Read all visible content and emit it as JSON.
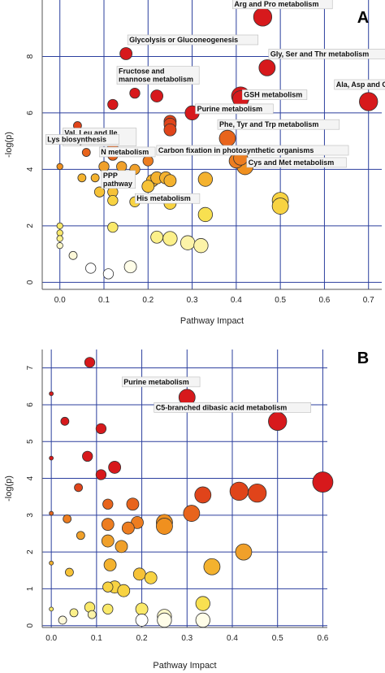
{
  "chart_data": [
    {
      "type": "scatter",
      "panel_label": "A",
      "xlabel": "Pathway Impact",
      "ylabel": "-log(p)",
      "xlim": [
        -0.04,
        0.73
      ],
      "ylim": [
        -0.25,
        10.0
      ],
      "xticks": [
        0.0,
        0.1,
        0.2,
        0.3,
        0.4,
        0.5,
        0.6,
        0.7
      ],
      "yticks": [
        0,
        2,
        4,
        6,
        8
      ],
      "grid": true,
      "points": [
        {
          "x": 0.46,
          "y": 9.4,
          "color": "#d7191c",
          "size": 9,
          "label": "Arg and Pro metabolism"
        },
        {
          "x": 0.15,
          "y": 8.1,
          "color": "#d7191c",
          "size": 6,
          "label": "Glycolysis or Gluconeogenesis"
        },
        {
          "x": 0.47,
          "y": 7.6,
          "color": "#d7191c",
          "size": 8,
          "label": "Gly, Ser and Thr metabolism"
        },
        {
          "x": 0.22,
          "y": 6.6,
          "color": "#d7191c",
          "size": 6
        },
        {
          "x": 0.17,
          "y": 6.7,
          "color": "#d7191c",
          "size": 5,
          "label": "Fructose and mannose metabolism"
        },
        {
          "x": 0.12,
          "y": 6.3,
          "color": "#d7191c",
          "size": 5
        },
        {
          "x": 0.7,
          "y": 6.4,
          "color": "#d7191c",
          "size": 9,
          "label": "Ala, Asp and Glu metabolism"
        },
        {
          "x": 0.41,
          "y": 6.6,
          "color": "#d7191c",
          "size": 9
        },
        {
          "x": 0.41,
          "y": 6.5,
          "color": "#d7191c",
          "size": 8,
          "label": "GSH metabolism"
        },
        {
          "x": 0.3,
          "y": 6.0,
          "color": "#d7191c",
          "size": 7,
          "label": "Purine metabolism"
        },
        {
          "x": 0.25,
          "y": 5.7,
          "color": "#e0441a",
          "size": 6
        },
        {
          "x": 0.25,
          "y": 5.6,
          "color": "#e0441a",
          "size": 6
        },
        {
          "x": 0.25,
          "y": 5.4,
          "color": "#e0441a",
          "size": 6
        },
        {
          "x": 0.04,
          "y": 5.55,
          "color": "#e0441a",
          "size": 4,
          "label": "Val, Leu and Ile biosynthesis"
        },
        {
          "x": 0.05,
          "y": 5.3,
          "color": "#e0441a",
          "size": 4
        },
        {
          "x": 0.38,
          "y": 5.1,
          "color": "#e8641c",
          "size": 8,
          "label": "Phe, Tyr and Trp metabolism"
        },
        {
          "x": 0.12,
          "y": 4.8,
          "color": "#e8641c",
          "size": 5
        },
        {
          "x": 0.06,
          "y": 4.6,
          "color": "#e8641c",
          "size": 4,
          "label": "Lys biosynthesis"
        },
        {
          "x": 0.12,
          "y": 4.5,
          "color": "#e8641c",
          "size": 5
        },
        {
          "x": 0.4,
          "y": 4.3,
          "color": "#ed7d20",
          "size": 7,
          "label": "Carbon fixation in photosynthetic organisms"
        },
        {
          "x": 0.41,
          "y": 4.4,
          "color": "#ed7d20",
          "size": 7
        },
        {
          "x": 0.2,
          "y": 4.3,
          "color": "#ed7d20",
          "size": 5,
          "label": "N metabolism"
        },
        {
          "x": 0.42,
          "y": 4.1,
          "color": "#f0901f",
          "size": 8,
          "label": "Cys and Met metabolism"
        },
        {
          "x": 0.0,
          "y": 4.1,
          "color": "#f0901f",
          "size": 3
        },
        {
          "x": 0.1,
          "y": 4.1,
          "color": "#f0a02a",
          "size": 5
        },
        {
          "x": 0.14,
          "y": 4.1,
          "color": "#f0a02a",
          "size": 5
        },
        {
          "x": 0.17,
          "y": 4.0,
          "color": "#f0a02a",
          "size": 5
        },
        {
          "x": 0.05,
          "y": 3.7,
          "color": "#f4b22e",
          "size": 4
        },
        {
          "x": 0.08,
          "y": 3.7,
          "color": "#f4b22e",
          "size": 4
        },
        {
          "x": 0.12,
          "y": 3.7,
          "color": "#f4b22e",
          "size": 5,
          "label": "PPP pathway"
        },
        {
          "x": 0.21,
          "y": 3.6,
          "color": "#f4b22e",
          "size": 6
        },
        {
          "x": 0.22,
          "y": 3.7,
          "color": "#f4b22e",
          "size": 6
        },
        {
          "x": 0.24,
          "y": 3.7,
          "color": "#f4b22e",
          "size": 6
        },
        {
          "x": 0.25,
          "y": 3.6,
          "color": "#f4b22e",
          "size": 6
        },
        {
          "x": 0.33,
          "y": 3.65,
          "color": "#f4b22e",
          "size": 7
        },
        {
          "x": 0.2,
          "y": 3.4,
          "color": "#f6c237",
          "size": 6,
          "label": "His metabolism"
        },
        {
          "x": 0.09,
          "y": 3.2,
          "color": "#f6c237",
          "size": 5
        },
        {
          "x": 0.12,
          "y": 3.2,
          "color": "#f6c237",
          "size": 5
        },
        {
          "x": 0.12,
          "y": 2.9,
          "color": "#f8d342",
          "size": 5
        },
        {
          "x": 0.17,
          "y": 2.85,
          "color": "#f8d342",
          "size": 5
        },
        {
          "x": 0.25,
          "y": 2.8,
          "color": "#f8d342",
          "size": 6
        },
        {
          "x": 0.5,
          "y": 2.9,
          "color": "#f8d342",
          "size": 8
        },
        {
          "x": 0.5,
          "y": 2.7,
          "color": "#f8d342",
          "size": 8
        },
        {
          "x": 0.33,
          "y": 2.4,
          "color": "#f8e050",
          "size": 7
        },
        {
          "x": 0.0,
          "y": 2.0,
          "color": "#fae96a",
          "size": 3
        },
        {
          "x": 0.0,
          "y": 1.75,
          "color": "#fae96a",
          "size": 3
        },
        {
          "x": 0.12,
          "y": 1.95,
          "color": "#fae96a",
          "size": 5
        },
        {
          "x": 0.0,
          "y": 1.55,
          "color": "#fcf08a",
          "size": 3
        },
        {
          "x": 0.22,
          "y": 1.6,
          "color": "#fcf08a",
          "size": 6
        },
        {
          "x": 0.25,
          "y": 1.55,
          "color": "#fcf08a",
          "size": 7
        },
        {
          "x": 0.29,
          "y": 1.4,
          "color": "#fcf3a8",
          "size": 7
        },
        {
          "x": 0.32,
          "y": 1.3,
          "color": "#fcf3a8",
          "size": 7
        },
        {
          "x": 0.0,
          "y": 1.3,
          "color": "#fdf8c8",
          "size": 3
        },
        {
          "x": 0.03,
          "y": 0.95,
          "color": "#fdf8d8",
          "size": 4
        },
        {
          "x": 0.07,
          "y": 0.5,
          "color": "#ffffff",
          "size": 5
        },
        {
          "x": 0.16,
          "y": 0.55,
          "color": "#fffde8",
          "size": 6
        },
        {
          "x": 0.11,
          "y": 0.3,
          "color": "#ffffff",
          "size": 5
        }
      ]
    },
    {
      "type": "scatter",
      "panel_label": "B",
      "xlabel": "Pathway Impact",
      "ylabel": "-log(p)",
      "xlim": [
        -0.02,
        0.61
      ],
      "ylim": [
        -0.05,
        7.5
      ],
      "xticks": [
        0.0,
        0.1,
        0.2,
        0.3,
        0.4,
        0.5,
        0.6
      ],
      "yticks": [
        0,
        1,
        2,
        3,
        4,
        5,
        6,
        7
      ],
      "grid": true,
      "points": [
        {
          "x": 0.085,
          "y": 7.15,
          "color": "#d7191c",
          "size": 5
        },
        {
          "x": 0.0,
          "y": 6.3,
          "color": "#d7191c",
          "size": 2
        },
        {
          "x": 0.3,
          "y": 6.2,
          "color": "#d7191c",
          "size": 8,
          "label": "Purine metabolism"
        },
        {
          "x": 0.5,
          "y": 5.55,
          "color": "#d7191c",
          "size": 9,
          "label": "C5-branched dibasic acid metabolism"
        },
        {
          "x": 0.03,
          "y": 5.55,
          "color": "#d7191c",
          "size": 4
        },
        {
          "x": 0.11,
          "y": 5.35,
          "color": "#d7191c",
          "size": 5
        },
        {
          "x": 0.0,
          "y": 4.55,
          "color": "#d7191c",
          "size": 2
        },
        {
          "x": 0.08,
          "y": 4.6,
          "color": "#d7191c",
          "size": 5
        },
        {
          "x": 0.14,
          "y": 4.3,
          "color": "#d7191c",
          "size": 6
        },
        {
          "x": 0.11,
          "y": 4.1,
          "color": "#d7191c",
          "size": 5
        },
        {
          "x": 0.6,
          "y": 3.9,
          "color": "#d7191c",
          "size": 10
        },
        {
          "x": 0.06,
          "y": 3.75,
          "color": "#e0441a",
          "size": 4
        },
        {
          "x": 0.415,
          "y": 3.65,
          "color": "#e0441a",
          "size": 9
        },
        {
          "x": 0.455,
          "y": 3.6,
          "color": "#e0441a",
          "size": 9
        },
        {
          "x": 0.335,
          "y": 3.55,
          "color": "#e0441a",
          "size": 8
        },
        {
          "x": 0.125,
          "y": 3.3,
          "color": "#e8641c",
          "size": 5
        },
        {
          "x": 0.18,
          "y": 3.3,
          "color": "#e8641c",
          "size": 6
        },
        {
          "x": 0.0,
          "y": 3.05,
          "color": "#e8641c",
          "size": 2
        },
        {
          "x": 0.31,
          "y": 3.05,
          "color": "#e8641c",
          "size": 8
        },
        {
          "x": 0.035,
          "y": 2.9,
          "color": "#ed7d20",
          "size": 4
        },
        {
          "x": 0.125,
          "y": 2.75,
          "color": "#ed7d20",
          "size": 6
        },
        {
          "x": 0.19,
          "y": 2.8,
          "color": "#ed7d20",
          "size": 6
        },
        {
          "x": 0.17,
          "y": 2.65,
          "color": "#ed7d20",
          "size": 6
        },
        {
          "x": 0.25,
          "y": 2.8,
          "color": "#f0901f",
          "size": 8
        },
        {
          "x": 0.25,
          "y": 2.7,
          "color": "#f0901f",
          "size": 8
        },
        {
          "x": 0.065,
          "y": 2.45,
          "color": "#f0a02a",
          "size": 4
        },
        {
          "x": 0.125,
          "y": 2.3,
          "color": "#f0a02a",
          "size": 6
        },
        {
          "x": 0.155,
          "y": 2.15,
          "color": "#f0a02a",
          "size": 6
        },
        {
          "x": 0.425,
          "y": 2.0,
          "color": "#f0a02a",
          "size": 8
        },
        {
          "x": 0.0,
          "y": 1.7,
          "color": "#f4b22e",
          "size": 2
        },
        {
          "x": 0.13,
          "y": 1.65,
          "color": "#f4b22e",
          "size": 6
        },
        {
          "x": 0.355,
          "y": 1.6,
          "color": "#f4b22e",
          "size": 8
        },
        {
          "x": 0.04,
          "y": 1.45,
          "color": "#f6c237",
          "size": 4
        },
        {
          "x": 0.195,
          "y": 1.4,
          "color": "#f6c237",
          "size": 6
        },
        {
          "x": 0.22,
          "y": 1.3,
          "color": "#f8d342",
          "size": 6
        },
        {
          "x": 0.125,
          "y": 1.05,
          "color": "#f8d342",
          "size": 5
        },
        {
          "x": 0.14,
          "y": 1.05,
          "color": "#f8d342",
          "size": 6
        },
        {
          "x": 0.16,
          "y": 0.95,
          "color": "#f8d342",
          "size": 6
        },
        {
          "x": 0.335,
          "y": 0.6,
          "color": "#f8e050",
          "size": 7
        },
        {
          "x": 0.085,
          "y": 0.5,
          "color": "#fae96a",
          "size": 5
        },
        {
          "x": 0.125,
          "y": 0.45,
          "color": "#fae96a",
          "size": 5
        },
        {
          "x": 0.0,
          "y": 0.45,
          "color": "#fae96a",
          "size": 2
        },
        {
          "x": 0.2,
          "y": 0.45,
          "color": "#fae96a",
          "size": 6
        },
        {
          "x": 0.05,
          "y": 0.35,
          "color": "#fcf08a",
          "size": 4
        },
        {
          "x": 0.09,
          "y": 0.3,
          "color": "#fcf3a8",
          "size": 4
        },
        {
          "x": 0.25,
          "y": 0.25,
          "color": "#fdf8c8",
          "size": 7
        },
        {
          "x": 0.025,
          "y": 0.15,
          "color": "#fdf8d8",
          "size": 4
        },
        {
          "x": 0.2,
          "y": 0.15,
          "color": "#ffffff",
          "size": 6
        },
        {
          "x": 0.25,
          "y": 0.15,
          "color": "#fffde8",
          "size": 7
        },
        {
          "x": 0.335,
          "y": 0.15,
          "color": "#fffde8",
          "size": 7
        }
      ]
    }
  ]
}
